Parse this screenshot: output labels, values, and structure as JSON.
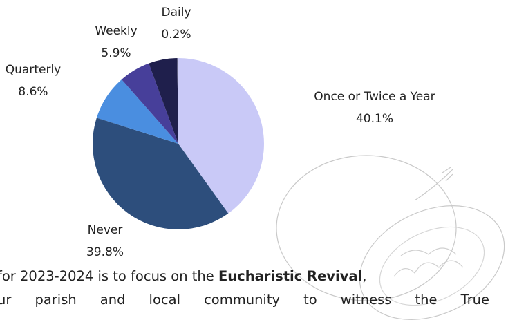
{
  "chart_data": {
    "type": "pie",
    "categories": [
      "Once or Twice a Year",
      "Never",
      "Quarterly",
      "Weekly",
      null,
      "Daily"
    ],
    "values": [
      40.1,
      39.8,
      8.6,
      5.9,
      5.4,
      0.2
    ],
    "value_labels": [
      "40.1%",
      "39.8%",
      "8.6%",
      "5.9%",
      null,
      "0.2%"
    ],
    "colors": [
      "#c9c9f7",
      "#2d4e7c",
      "#4a8ee0",
      "#473f9a",
      "#1f1f4c",
      "#9a9ab0"
    ]
  },
  "text": {
    "lines": [
      [
        "for 2023-2024 is to focus on the ",
        "Eucharistic Revival",
        ","
      ],
      [
        "ur parish and local community to witness the True"
      ]
    ]
  }
}
